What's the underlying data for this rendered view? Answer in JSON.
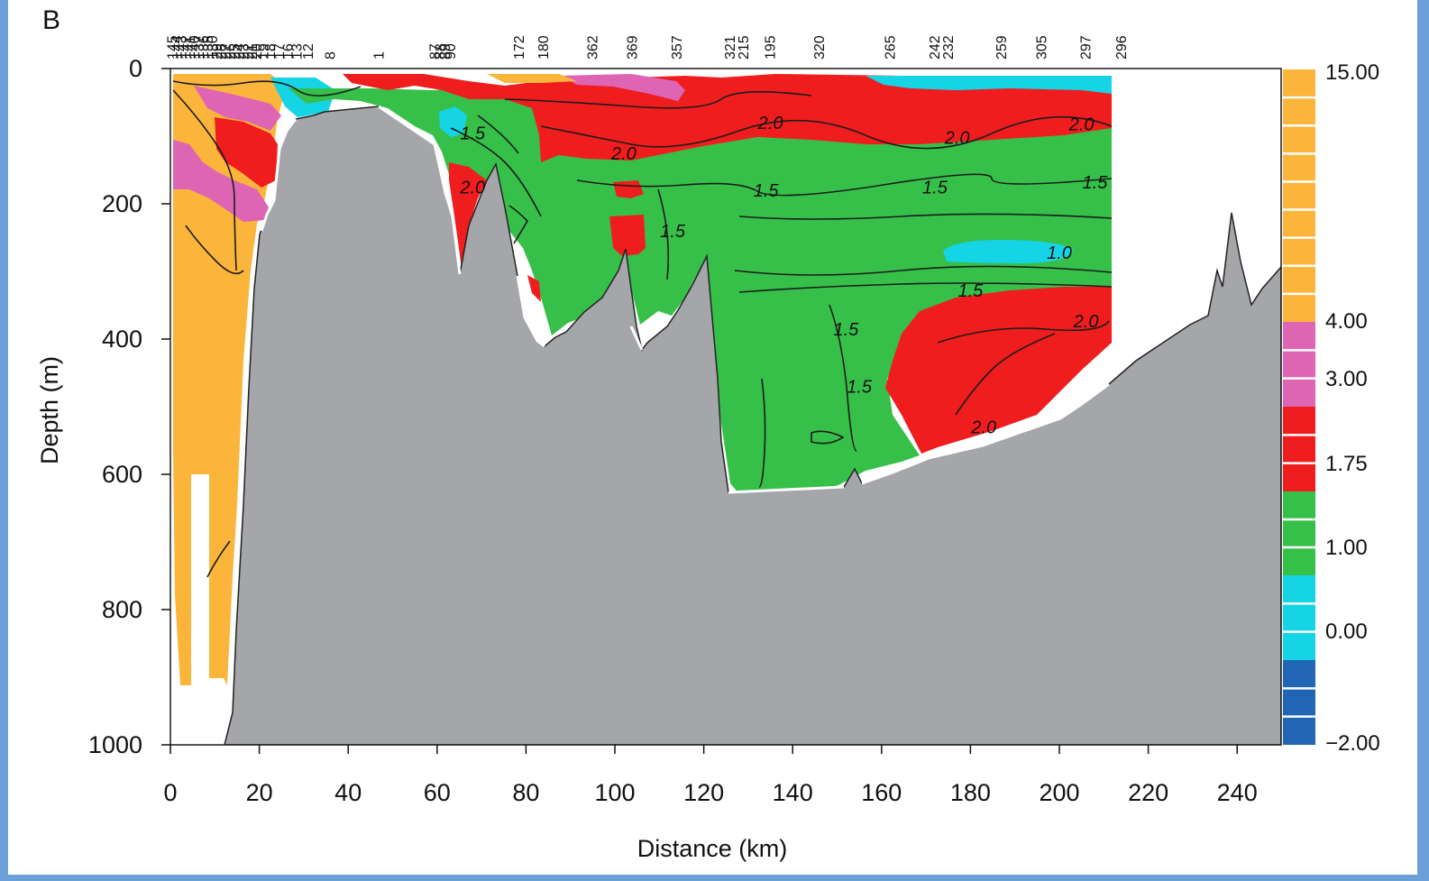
{
  "panel_label": "B",
  "chart_data": {
    "type": "heatmap",
    "title": "",
    "xlabel": "Distance (km)",
    "ylabel": "Depth (m)",
    "xlim": [
      0,
      250
    ],
    "ylim": [
      1000,
      0
    ],
    "x_ticks": [
      "0",
      "20",
      "40",
      "60",
      "80",
      "100",
      "120",
      "140",
      "160",
      "180",
      "200",
      "220",
      "240"
    ],
    "y_ticks": [
      "0",
      "200",
      "400",
      "600",
      "800",
      "1000"
    ],
    "station_labels": [
      {
        "x": 0.5,
        "label": "145"
      },
      {
        "x": 1.5,
        "label": "144"
      },
      {
        "x": 2.5,
        "label": "143"
      },
      {
        "x": 3.5,
        "label": "142"
      },
      {
        "x": 4.5,
        "label": "141"
      },
      {
        "x": 5.5,
        "label": "140"
      },
      {
        "x": 6.5,
        "label": "137"
      },
      {
        "x": 7.5,
        "label": "136"
      },
      {
        "x": 8.5,
        "label": "135"
      },
      {
        "x": 9.5,
        "label": "130"
      },
      {
        "x": 10.5,
        "label": "29"
      },
      {
        "x": 11.5,
        "label": "28"
      },
      {
        "x": 12.5,
        "label": "27"
      },
      {
        "x": 13.5,
        "label": "26"
      },
      {
        "x": 14.5,
        "label": "25"
      },
      {
        "x": 15.5,
        "label": "24"
      },
      {
        "x": 16.5,
        "label": "23"
      },
      {
        "x": 17.5,
        "label": "22"
      },
      {
        "x": 18.5,
        "label": "21"
      },
      {
        "x": 19.5,
        "label": "20"
      },
      {
        "x": 21,
        "label": "19"
      },
      {
        "x": 22.5,
        "label": "18"
      },
      {
        "x": 24.5,
        "label": "17"
      },
      {
        "x": 26.5,
        "label": "16"
      },
      {
        "x": 28.5,
        "label": "13"
      },
      {
        "x": 31,
        "label": "12"
      },
      {
        "x": 36,
        "label": "8"
      },
      {
        "x": 47,
        "label": "1"
      },
      {
        "x": 59.5,
        "label": "87"
      },
      {
        "x": 60.7,
        "label": "88"
      },
      {
        "x": 61.9,
        "label": "89"
      },
      {
        "x": 63.1,
        "label": "90"
      },
      {
        "x": 78.5,
        "label": "172"
      },
      {
        "x": 84,
        "label": "180"
      },
      {
        "x": 95,
        "label": "362"
      },
      {
        "x": 104,
        "label": "369"
      },
      {
        "x": 114,
        "label": "357"
      },
      {
        "x": 126,
        "label": "321"
      },
      {
        "x": 129,
        "label": "215"
      },
      {
        "x": 135,
        "label": "195"
      },
      {
        "x": 146,
        "label": "320"
      },
      {
        "x": 162,
        "label": "265"
      },
      {
        "x": 172,
        "label": "242"
      },
      {
        "x": 175,
        "label": "232"
      },
      {
        "x": 187,
        "label": "259"
      },
      {
        "x": 196,
        "label": "305"
      },
      {
        "x": 206,
        "label": "297"
      },
      {
        "x": 214,
        "label": "296"
      }
    ],
    "colorbar": {
      "labels": [
        "15.00",
        "4.00",
        "3.00",
        "1.75",
        "1.00",
        "0.00",
        "−2.00"
      ],
      "bands": [
        {
          "from": 4.0,
          "to": 15.0,
          "color": "#fbb53b"
        },
        {
          "from": 3.0,
          "to": 4.0,
          "color": "#de64b4"
        },
        {
          "from": 1.75,
          "to": 3.0,
          "color": "#f01d1f"
        },
        {
          "from": 1.0,
          "to": 1.75,
          "color": "#36c04a"
        },
        {
          "from": 0.0,
          "to": 1.0,
          "color": "#15d4e5"
        },
        {
          "from": -2.0,
          "to": 0.0,
          "color": "#2166b5"
        }
      ]
    },
    "contour_labels": [
      {
        "x": 68,
        "y": 95,
        "label": "1.5"
      },
      {
        "x": 102,
        "y": 125,
        "label": "2.0"
      },
      {
        "x": 135,
        "y": 80,
        "label": "2.0"
      },
      {
        "x": 177,
        "y": 102,
        "label": "2.0"
      },
      {
        "x": 205,
        "y": 82,
        "label": "2.0"
      },
      {
        "x": 68,
        "y": 175,
        "label": "2.0"
      },
      {
        "x": 134,
        "y": 180,
        "label": "1.5"
      },
      {
        "x": 172,
        "y": 175,
        "label": "1.5"
      },
      {
        "x": 208,
        "y": 168,
        "label": "1.5"
      },
      {
        "x": 113,
        "y": 240,
        "label": "1.5"
      },
      {
        "x": 200,
        "y": 272,
        "label": "1.0"
      },
      {
        "x": 180,
        "y": 328,
        "label": "1.5"
      },
      {
        "x": 152,
        "y": 385,
        "label": "1.5"
      },
      {
        "x": 155,
        "y": 470,
        "label": "1.5"
      },
      {
        "x": 206,
        "y": 373,
        "label": "2.0"
      },
      {
        "x": 183,
        "y": 530,
        "label": "2.0"
      }
    ]
  }
}
